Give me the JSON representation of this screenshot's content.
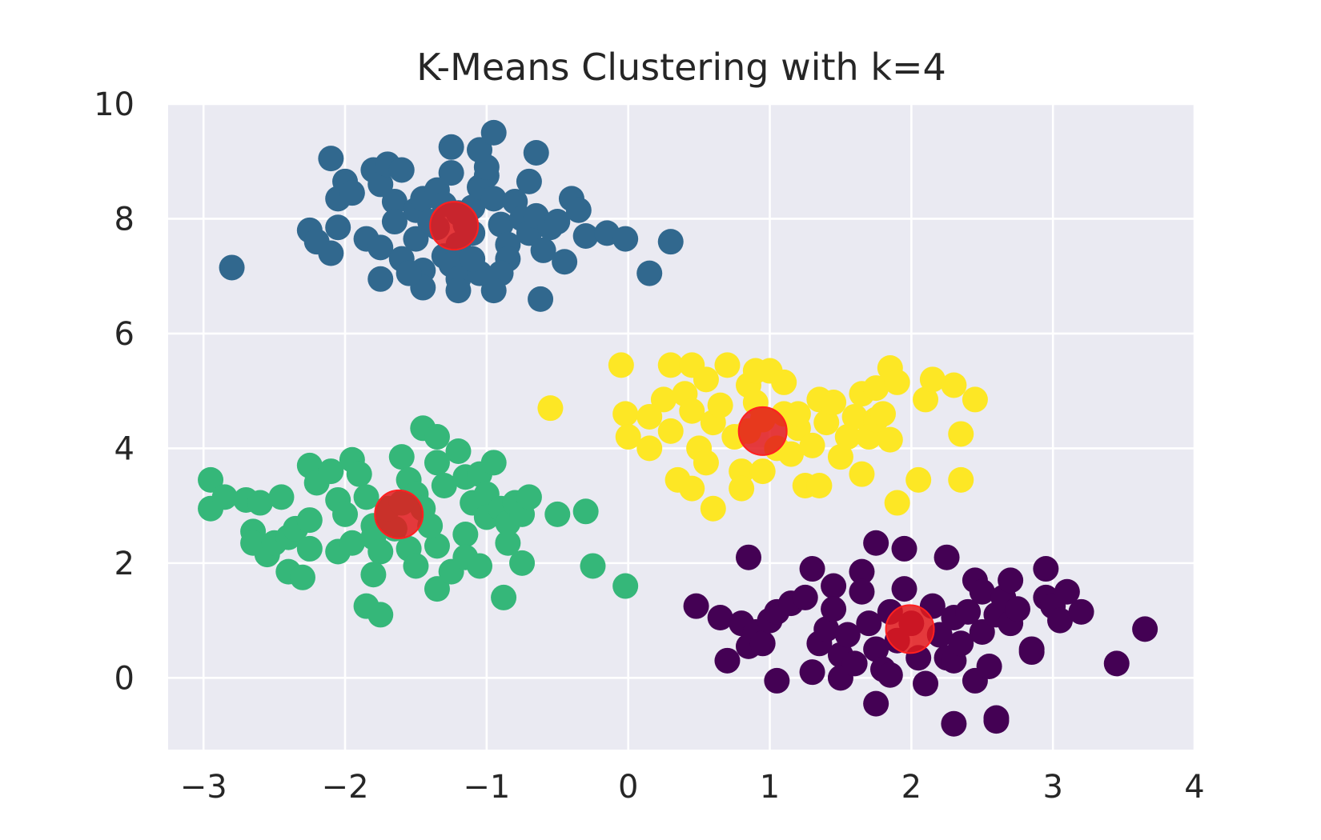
{
  "chart_data": {
    "type": "scatter",
    "title": "K-Means Clustering with k=4",
    "xlabel": "",
    "ylabel": "",
    "xlim": [
      -3.25,
      4
    ],
    "ylim": [
      -1.25,
      10
    ],
    "xticks": [
      -3,
      -2,
      -1,
      0,
      1,
      2,
      3,
      4
    ],
    "xtick_labels": [
      "−3",
      "−2",
      "−1",
      "0",
      "1",
      "2",
      "3",
      "4"
    ],
    "yticks": [
      0,
      2,
      4,
      6,
      8,
      10
    ],
    "ytick_labels": [
      "0",
      "2",
      "4",
      "6",
      "8",
      "10"
    ],
    "grid": true,
    "legend": "none",
    "colors": {
      "background": "#eaeaf2",
      "grid": "#ffffff",
      "cluster_blue": "#31688e",
      "cluster_green": "#35b779",
      "cluster_yellow": "#fde725",
      "cluster_purple": "#440154",
      "centroid": "#e31a1c"
    },
    "clusters": [
      {
        "color": "#31688e",
        "points": [
          [
            -2.8,
            7.15
          ],
          [
            -2.25,
            7.8
          ],
          [
            -2.2,
            7.6
          ],
          [
            -2.1,
            7.4
          ],
          [
            -2.05,
            7.85
          ],
          [
            -2.1,
            9.05
          ],
          [
            -2.05,
            8.35
          ],
          [
            -2.0,
            8.65
          ],
          [
            -1.95,
            8.45
          ],
          [
            -1.85,
            7.65
          ],
          [
            -1.8,
            8.85
          ],
          [
            -1.75,
            8.6
          ],
          [
            -1.7,
            8.95
          ],
          [
            -1.65,
            8.3
          ],
          [
            -1.6,
            8.85
          ],
          [
            -1.65,
            7.95
          ],
          [
            -1.75,
            7.5
          ],
          [
            -1.75,
            6.95
          ],
          [
            -1.6,
            7.3
          ],
          [
            -1.5,
            7.65
          ],
          [
            -1.5,
            8.15
          ],
          [
            -1.45,
            8.35
          ],
          [
            -1.4,
            7.95
          ],
          [
            -1.35,
            8.5
          ],
          [
            -1.3,
            7.35
          ],
          [
            -1.45,
            7.1
          ],
          [
            -1.45,
            6.8
          ],
          [
            -1.55,
            7.05
          ],
          [
            -1.25,
            8.8
          ],
          [
            -1.25,
            9.25
          ],
          [
            -1.2,
            8.1
          ],
          [
            -1.2,
            7.55
          ],
          [
            -1.25,
            7.2
          ],
          [
            -1.2,
            6.95
          ],
          [
            -1.2,
            6.75
          ],
          [
            -1.1,
            8.2
          ],
          [
            -1.05,
            8.55
          ],
          [
            -1.0,
            8.75
          ],
          [
            -1.0,
            8.9
          ],
          [
            -1.05,
            9.2
          ],
          [
            -0.95,
            9.5
          ],
          [
            -0.95,
            8.35
          ],
          [
            -0.9,
            7.9
          ],
          [
            -0.85,
            7.55
          ],
          [
            -0.85,
            7.3
          ],
          [
            -0.9,
            7.05
          ],
          [
            -0.95,
            6.75
          ],
          [
            -1.05,
            7.05
          ],
          [
            -1.1,
            7.3
          ],
          [
            -1.1,
            7.75
          ],
          [
            -0.8,
            8.3
          ],
          [
            -0.75,
            8.0
          ],
          [
            -0.7,
            7.75
          ],
          [
            -0.7,
            8.65
          ],
          [
            -0.65,
            9.15
          ],
          [
            -0.65,
            8.05
          ],
          [
            -0.6,
            7.45
          ],
          [
            -0.55,
            7.85
          ],
          [
            -0.5,
            7.95
          ],
          [
            -0.45,
            7.25
          ],
          [
            -0.4,
            8.35
          ],
          [
            -0.35,
            8.15
          ],
          [
            -0.3,
            7.7
          ],
          [
            -0.15,
            7.75
          ],
          [
            -0.02,
            7.65
          ],
          [
            0.15,
            7.05
          ],
          [
            0.3,
            7.6
          ],
          [
            -0.62,
            6.6
          ],
          [
            -1.35,
            7.85
          ],
          [
            -1.3,
            8.25
          ],
          [
            -1.15,
            7.9
          ]
        ]
      },
      {
        "color": "#35b779",
        "points": [
          [
            -2.95,
            3.45
          ],
          [
            -2.95,
            2.95
          ],
          [
            -2.85,
            3.15
          ],
          [
            -2.7,
            3.1
          ],
          [
            -2.6,
            3.05
          ],
          [
            -2.45,
            3.15
          ],
          [
            -2.65,
            2.55
          ],
          [
            -2.65,
            2.35
          ],
          [
            -2.55,
            2.15
          ],
          [
            -2.5,
            2.35
          ],
          [
            -2.4,
            2.45
          ],
          [
            -2.35,
            2.6
          ],
          [
            -2.25,
            2.75
          ],
          [
            -2.4,
            1.85
          ],
          [
            -2.3,
            1.75
          ],
          [
            -2.25,
            2.25
          ],
          [
            -2.25,
            3.7
          ],
          [
            -2.2,
            3.4
          ],
          [
            -2.1,
            3.6
          ],
          [
            -2.05,
            3.1
          ],
          [
            -2.0,
            2.85
          ],
          [
            -2.05,
            2.2
          ],
          [
            -1.95,
            2.35
          ],
          [
            -1.95,
            3.8
          ],
          [
            -1.9,
            3.55
          ],
          [
            -1.85,
            3.15
          ],
          [
            -1.8,
            2.65
          ],
          [
            -1.8,
            2.45
          ],
          [
            -1.75,
            2.2
          ],
          [
            -1.8,
            1.8
          ],
          [
            -1.85,
            1.25
          ],
          [
            -1.75,
            1.1
          ],
          [
            -1.65,
            2.6
          ],
          [
            -1.6,
            3.85
          ],
          [
            -1.55,
            3.45
          ],
          [
            -1.5,
            3.2
          ],
          [
            -1.45,
            2.95
          ],
          [
            -1.55,
            2.25
          ],
          [
            -1.5,
            1.95
          ],
          [
            -1.45,
            4.35
          ],
          [
            -1.35,
            4.2
          ],
          [
            -1.35,
            3.75
          ],
          [
            -1.3,
            3.35
          ],
          [
            -1.35,
            2.3
          ],
          [
            -1.35,
            1.55
          ],
          [
            -1.25,
            1.85
          ],
          [
            -1.2,
            3.95
          ],
          [
            -1.15,
            3.5
          ],
          [
            -1.1,
            3.05
          ],
          [
            -1.15,
            2.5
          ],
          [
            -1.15,
            2.1
          ],
          [
            -1.05,
            3.55
          ],
          [
            -1.0,
            3.2
          ],
          [
            -1.0,
            2.8
          ],
          [
            -1.05,
            1.95
          ],
          [
            -0.95,
            3.75
          ],
          [
            -0.9,
            2.95
          ],
          [
            -0.85,
            2.7
          ],
          [
            -0.85,
            2.35
          ],
          [
            -0.8,
            3.05
          ],
          [
            -0.75,
            2.85
          ],
          [
            -0.7,
            3.15
          ],
          [
            -0.75,
            2.0
          ],
          [
            -0.88,
            1.4
          ],
          [
            -0.5,
            2.85
          ],
          [
            -0.3,
            2.9
          ],
          [
            -0.25,
            1.95
          ],
          [
            -0.02,
            1.6
          ],
          [
            -1.7,
            2.95
          ],
          [
            -1.4,
            2.65
          ],
          [
            -1.6,
            3.05
          ]
        ]
      },
      {
        "color": "#fde725",
        "points": [
          [
            -0.55,
            4.7
          ],
          [
            -0.05,
            5.45
          ],
          [
            -0.02,
            4.6
          ],
          [
            0.0,
            4.2
          ],
          [
            0.15,
            4.55
          ],
          [
            0.15,
            4.0
          ],
          [
            0.25,
            4.85
          ],
          [
            0.3,
            5.45
          ],
          [
            0.3,
            4.3
          ],
          [
            0.35,
            3.45
          ],
          [
            0.4,
            4.95
          ],
          [
            0.45,
            5.45
          ],
          [
            0.45,
            4.65
          ],
          [
            0.45,
            3.3
          ],
          [
            0.5,
            4.0
          ],
          [
            0.55,
            3.75
          ],
          [
            0.55,
            5.2
          ],
          [
            0.6,
            4.45
          ],
          [
            0.6,
            2.95
          ],
          [
            0.65,
            4.75
          ],
          [
            0.7,
            5.45
          ],
          [
            0.75,
            4.2
          ],
          [
            0.8,
            3.6
          ],
          [
            0.8,
            3.3
          ],
          [
            0.85,
            5.1
          ],
          [
            0.9,
            4.8
          ],
          [
            0.9,
            5.35
          ],
          [
            0.95,
            4.5
          ],
          [
            0.95,
            3.6
          ],
          [
            1.0,
            5.35
          ],
          [
            1.05,
            4.0
          ],
          [
            1.1,
            4.6
          ],
          [
            1.1,
            5.15
          ],
          [
            1.15,
            3.9
          ],
          [
            1.2,
            4.35
          ],
          [
            1.25,
            3.35
          ],
          [
            1.3,
            4.05
          ],
          [
            1.35,
            4.85
          ],
          [
            1.35,
            3.35
          ],
          [
            1.4,
            4.45
          ],
          [
            1.45,
            4.8
          ],
          [
            1.5,
            3.85
          ],
          [
            1.55,
            4.2
          ],
          [
            1.6,
            4.55
          ],
          [
            1.65,
            3.55
          ],
          [
            1.65,
            4.95
          ],
          [
            1.7,
            4.2
          ],
          [
            1.75,
            5.05
          ],
          [
            1.75,
            4.5
          ],
          [
            1.8,
            4.6
          ],
          [
            1.85,
            5.4
          ],
          [
            1.85,
            4.15
          ],
          [
            1.9,
            5.15
          ],
          [
            1.9,
            3.05
          ],
          [
            2.05,
            3.45
          ],
          [
            2.1,
            4.85
          ],
          [
            2.15,
            5.2
          ],
          [
            2.3,
            5.1
          ],
          [
            2.35,
            4.25
          ],
          [
            2.35,
            3.45
          ],
          [
            2.45,
            4.85
          ],
          [
            1.2,
            4.6
          ],
          [
            0.85,
            4.3
          ]
        ]
      },
      {
        "color": "#440154",
        "points": [
          [
            0.48,
            1.25
          ],
          [
            0.65,
            1.05
          ],
          [
            0.7,
            0.3
          ],
          [
            0.8,
            0.95
          ],
          [
            0.85,
            2.1
          ],
          [
            0.85,
            0.55
          ],
          [
            0.9,
            0.8
          ],
          [
            0.95,
            0.6
          ],
          [
            1.0,
            1.0
          ],
          [
            1.05,
            1.15
          ],
          [
            1.05,
            -0.05
          ],
          [
            1.15,
            1.3
          ],
          [
            1.25,
            1.4
          ],
          [
            1.3,
            1.9
          ],
          [
            1.3,
            0.1
          ],
          [
            1.35,
            0.6
          ],
          [
            1.4,
            0.85
          ],
          [
            1.45,
            1.6
          ],
          [
            1.45,
            1.2
          ],
          [
            1.5,
            0.4
          ],
          [
            1.5,
            0.0
          ],
          [
            1.55,
            0.75
          ],
          [
            1.6,
            0.25
          ],
          [
            1.65,
            1.85
          ],
          [
            1.65,
            1.5
          ],
          [
            1.7,
            0.95
          ],
          [
            1.75,
            0.5
          ],
          [
            1.75,
            2.35
          ],
          [
            1.75,
            -0.45
          ],
          [
            1.8,
            0.15
          ],
          [
            1.85,
            1.15
          ],
          [
            1.85,
            0.05
          ],
          [
            1.9,
            0.65
          ],
          [
            1.95,
            1.55
          ],
          [
            1.95,
            2.25
          ],
          [
            2.0,
            0.95
          ],
          [
            2.05,
            0.35
          ],
          [
            2.1,
            -0.1
          ],
          [
            2.15,
            1.25
          ],
          [
            2.2,
            0.75
          ],
          [
            2.25,
            0.35
          ],
          [
            2.25,
            2.1
          ],
          [
            2.3,
            1.05
          ],
          [
            2.3,
            0.3
          ],
          [
            2.3,
            -0.8
          ],
          [
            2.35,
            0.6
          ],
          [
            2.4,
            1.15
          ],
          [
            2.45,
            1.7
          ],
          [
            2.45,
            -0.05
          ],
          [
            2.5,
            0.8
          ],
          [
            2.5,
            1.5
          ],
          [
            2.55,
            0.2
          ],
          [
            2.6,
            1.1
          ],
          [
            2.6,
            -0.75
          ],
          [
            2.65,
            1.4
          ],
          [
            2.7,
            0.95
          ],
          [
            2.7,
            1.7
          ],
          [
            2.75,
            1.2
          ],
          [
            2.85,
            0.45
          ],
          [
            2.85,
            0.5
          ],
          [
            2.95,
            1.9
          ],
          [
            2.95,
            1.4
          ],
          [
            3.0,
            1.25
          ],
          [
            3.05,
            1.0
          ],
          [
            3.1,
            1.5
          ],
          [
            3.2,
            1.15
          ],
          [
            3.45,
            0.25
          ],
          [
            3.65,
            0.85
          ],
          [
            2.6,
            -0.7
          ]
        ]
      }
    ],
    "centroids": [
      {
        "x": -1.23,
        "y": 7.88
      },
      {
        "x": -1.62,
        "y": 2.85
      },
      {
        "x": 0.95,
        "y": 4.3
      },
      {
        "x": 1.99,
        "y": 0.85
      }
    ]
  }
}
